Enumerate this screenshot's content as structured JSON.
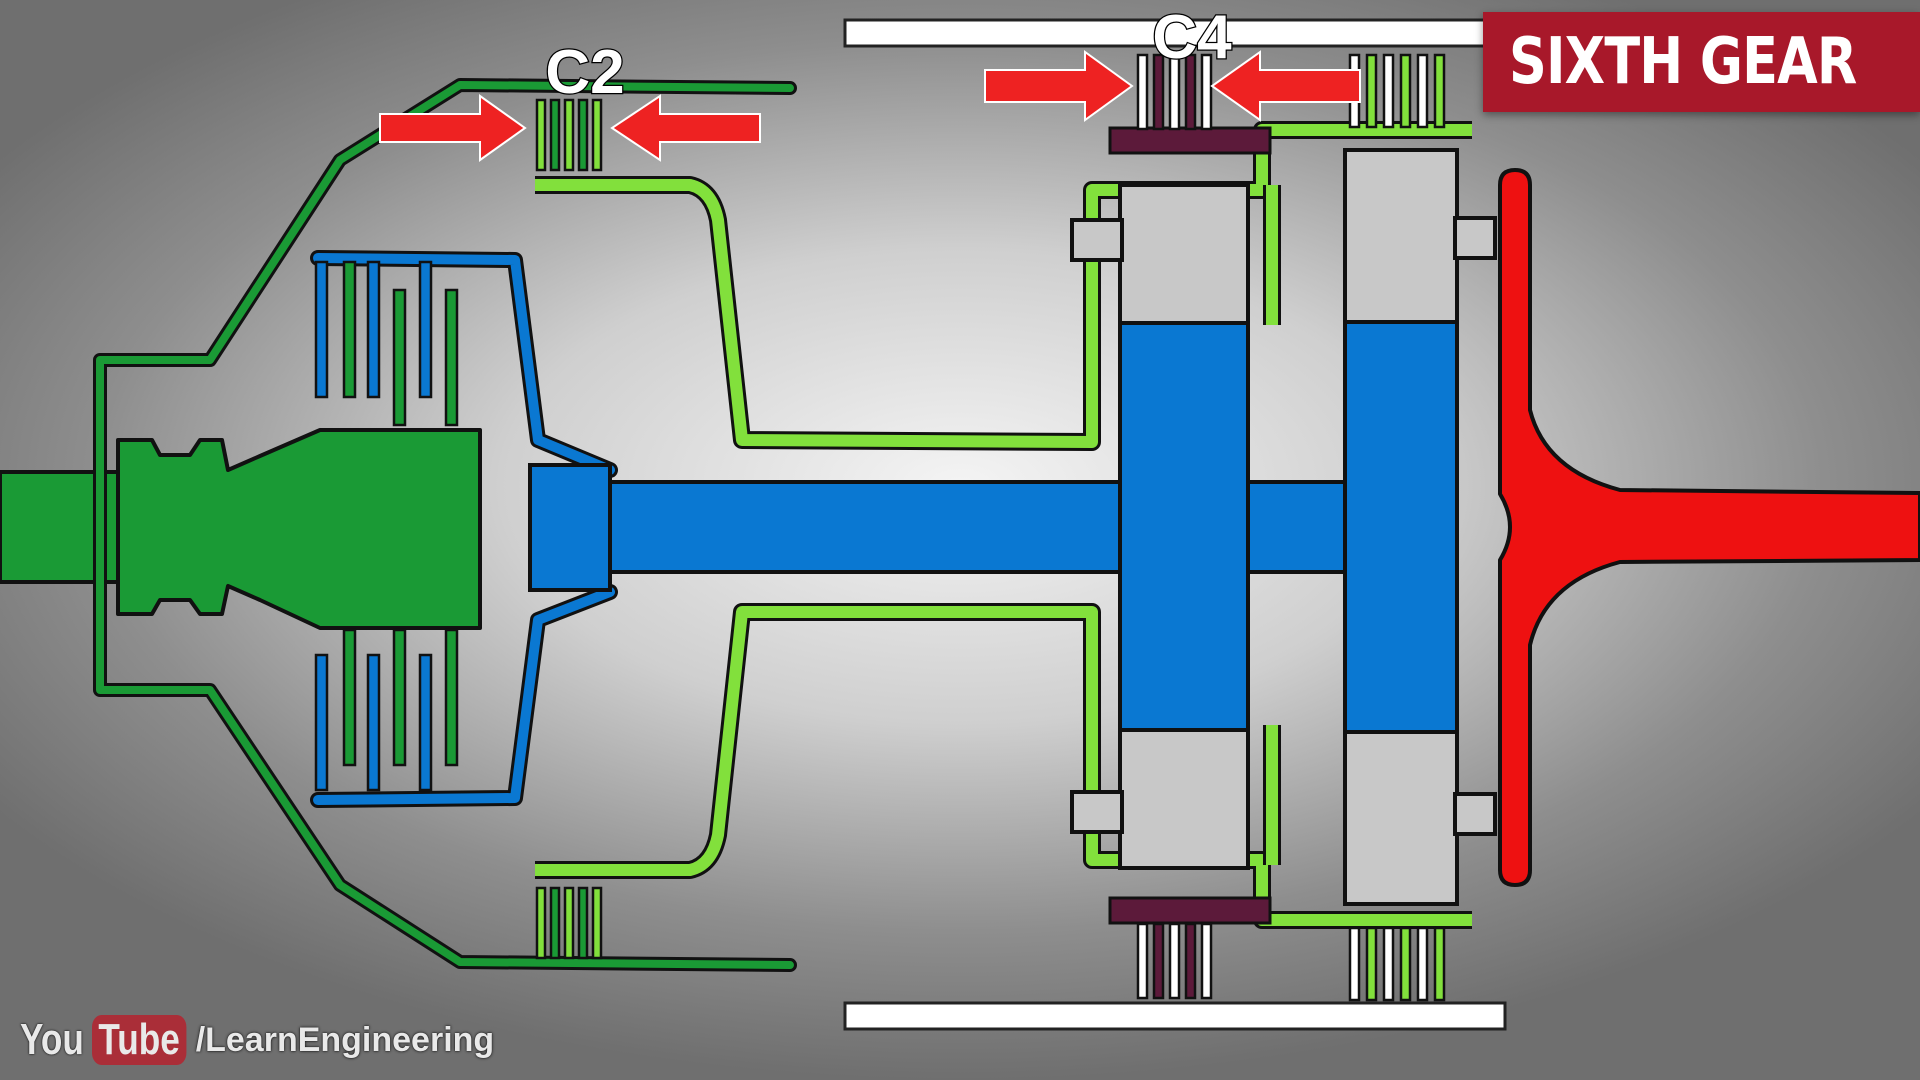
{
  "diagram": {
    "gear_title": "SIXTH GEAR",
    "clutch_labels": {
      "c2": "C2",
      "c4": "C4"
    },
    "watermark": {
      "you": "You",
      "tube": "Tube",
      "channel": "/LearnEngineering"
    }
  },
  "colors": {
    "input_green": "#1a9a35",
    "light_green": "#82e03c",
    "blue": "#0a78d2",
    "red": "#ee1111",
    "gray_gear": "#c8c8c8",
    "maroon": "#5c1a3a",
    "banner": "#a8182a"
  }
}
